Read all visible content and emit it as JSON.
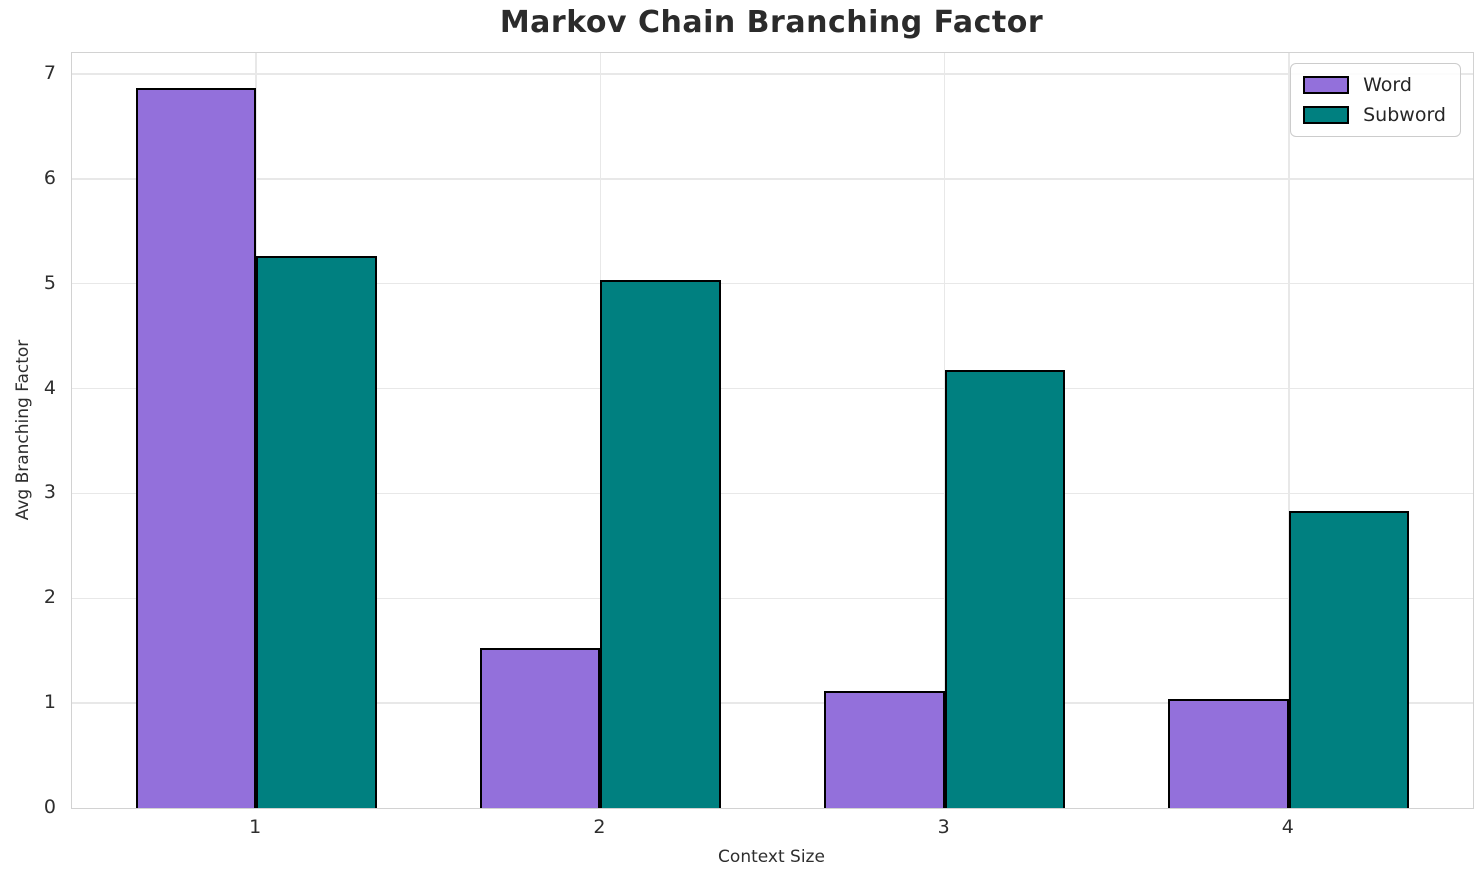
{
  "chart_data": {
    "type": "bar",
    "title": "Markov Chain Branching Factor",
    "xlabel": "Context Size",
    "ylabel": "Avg Branching Factor",
    "categories": [
      "1",
      "2",
      "3",
      "4"
    ],
    "x_positions": [
      1,
      2,
      3,
      4
    ],
    "series": [
      {
        "name": "Word",
        "color": "#9370DB",
        "values": [
          6.87,
          1.53,
          1.12,
          1.04
        ]
      },
      {
        "name": "Subword",
        "color": "#008080",
        "values": [
          5.26,
          5.04,
          4.18,
          2.83
        ]
      }
    ],
    "bar_width": 0.35,
    "bar_edge_color": "#000000",
    "yticks": [
      0,
      1,
      2,
      3,
      4,
      5,
      6,
      7
    ],
    "ylim": [
      0,
      7.2
    ],
    "xlim": [
      0.465,
      4.535
    ],
    "grid": true,
    "legend": {
      "position": "upper right",
      "entries": [
        "Word",
        "Subword"
      ]
    }
  },
  "colors": {
    "grid": "#e8e8e8",
    "spine": "#d2d2d2",
    "text": "#2e2e2e",
    "title": "#2b2b2b"
  }
}
